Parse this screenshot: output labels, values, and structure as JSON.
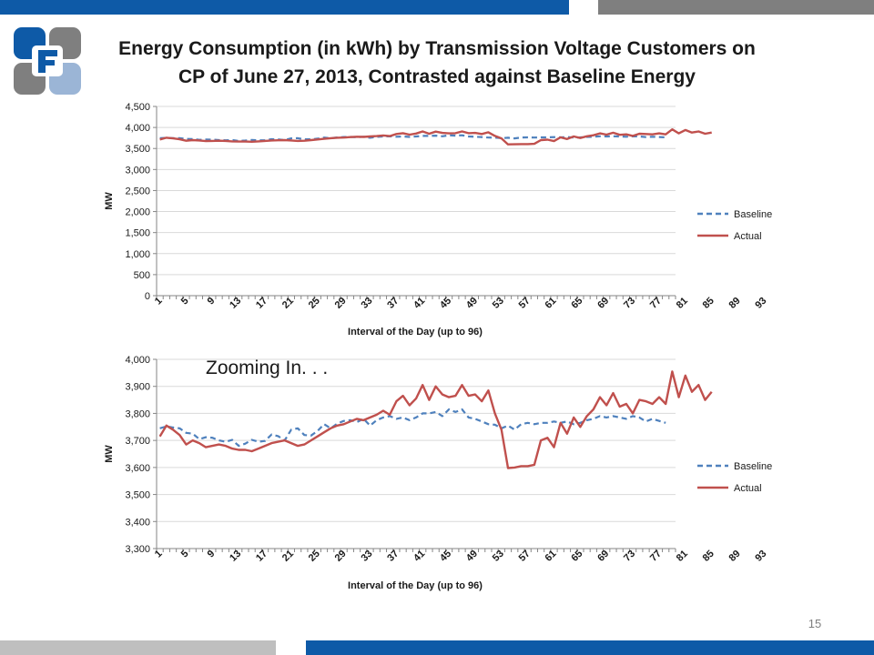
{
  "slide": {
    "title_line1": "Energy Consumption (in kWh) by Transmission Voltage Customers on",
    "title_line2": "CP of June 27, 2013, Contrasted against Baseline Energy",
    "zoom_label": "Zooming In. . .",
    "page_number": "15"
  },
  "colors": {
    "brand_blue": "#0e5aa7",
    "gray": "#7f7f7f",
    "baseline": "#4f81bd",
    "actual": "#c0504d"
  },
  "chart_data": [
    {
      "type": "line",
      "xlabel": "Interval of the Day (up to 96)",
      "ylabel": "MW",
      "ylim": [
        0,
        4500
      ],
      "yticks": [
        0,
        500,
        1000,
        1500,
        2000,
        2500,
        3000,
        3500,
        4000,
        4500
      ],
      "ytick_labels": [
        "0",
        "500",
        "1,000",
        "1,500",
        "2,000",
        "2,500",
        "3,000",
        "3,500",
        "4,000",
        "4,500"
      ],
      "xticks": [
        1,
        5,
        9,
        13,
        17,
        21,
        25,
        29,
        33,
        37,
        41,
        45,
        49,
        53,
        57,
        61,
        65,
        69,
        73,
        77,
        81,
        85,
        89,
        93
      ],
      "xtick_labels": [
        "1",
        "5",
        "9",
        "13",
        "17",
        "21",
        "25",
        "29",
        "33",
        "37",
        "41",
        "45",
        "49",
        "53",
        "57",
        "61",
        "65",
        "69",
        "73",
        "77",
        "81",
        "85",
        "89",
        "93"
      ],
      "grid": true,
      "legend": "right",
      "series": [
        {
          "name": "Baseline",
          "style": "dashed",
          "values": [
            3745,
            3752,
            3748,
            3745,
            3728,
            3725,
            3705,
            3712,
            3710,
            3700,
            3695,
            3702,
            3680,
            3688,
            3702,
            3695,
            3698,
            3722,
            3716,
            3700,
            3740,
            3745,
            3720,
            3718,
            3735,
            3760,
            3745,
            3762,
            3772,
            3775,
            3768,
            3780,
            3755,
            3775,
            3785,
            3790,
            3780,
            3785,
            3775,
            3785,
            3800,
            3800,
            3805,
            3790,
            3815,
            3805,
            3815,
            3785,
            3780,
            3770,
            3760,
            3758,
            3745,
            3755,
            3740,
            3760,
            3765,
            3760,
            3765,
            3765,
            3770,
            3765,
            3770,
            3760,
            3765,
            3775,
            3780,
            3790,
            3785,
            3790,
            3785,
            3780,
            3790,
            3785,
            3770,
            3780,
            3772,
            3765
          ]
        },
        {
          "name": "Actual",
          "style": "solid",
          "values": [
            3715,
            3755,
            3740,
            3720,
            3685,
            3700,
            3690,
            3675,
            3680,
            3685,
            3680,
            3670,
            3665,
            3665,
            3660,
            3670,
            3680,
            3690,
            3695,
            3700,
            3690,
            3680,
            3685,
            3700,
            3715,
            3730,
            3745,
            3755,
            3760,
            3770,
            3780,
            3775,
            3785,
            3795,
            3810,
            3795,
            3845,
            3865,
            3830,
            3855,
            3905,
            3850,
            3900,
            3870,
            3860,
            3865,
            3905,
            3865,
            3870,
            3845,
            3885,
            3800,
            3740,
            3598,
            3600,
            3605,
            3605,
            3610,
            3700,
            3710,
            3675,
            3765,
            3725,
            3785,
            3750,
            3790,
            3815,
            3860,
            3830,
            3875,
            3825,
            3835,
            3800,
            3850,
            3845,
            3835,
            3860,
            3835,
            3955,
            3860,
            3940,
            3880,
            3905,
            3850,
            3880
          ]
        }
      ]
    },
    {
      "type": "line",
      "xlabel": "Interval of the Day (up to 96)",
      "ylabel": "MW",
      "ylim": [
        3300,
        4000
      ],
      "yticks": [
        3300,
        3400,
        3500,
        3600,
        3700,
        3800,
        3900,
        4000
      ],
      "ytick_labels": [
        "3,300",
        "3,400",
        "3,500",
        "3,600",
        "3,700",
        "3,800",
        "3,900",
        "4,000"
      ],
      "xticks": [
        1,
        5,
        9,
        13,
        17,
        21,
        25,
        29,
        33,
        37,
        41,
        45,
        49,
        53,
        57,
        61,
        65,
        69,
        73,
        77,
        81,
        85,
        89,
        93
      ],
      "xtick_labels": [
        "1",
        "5",
        "9",
        "13",
        "17",
        "21",
        "25",
        "29",
        "33",
        "37",
        "41",
        "45",
        "49",
        "53",
        "57",
        "61",
        "65",
        "69",
        "73",
        "77",
        "81",
        "85",
        "89",
        "93"
      ],
      "grid": true,
      "legend": "right",
      "series": [
        {
          "name": "Baseline",
          "style": "dashed",
          "values": [
            3745,
            3752,
            3748,
            3745,
            3728,
            3725,
            3705,
            3712,
            3710,
            3700,
            3695,
            3702,
            3680,
            3688,
            3702,
            3695,
            3698,
            3722,
            3716,
            3700,
            3740,
            3745,
            3720,
            3718,
            3735,
            3760,
            3745,
            3762,
            3772,
            3775,
            3768,
            3780,
            3755,
            3775,
            3785,
            3790,
            3780,
            3785,
            3775,
            3785,
            3800,
            3800,
            3805,
            3790,
            3815,
            3805,
            3815,
            3785,
            3780,
            3770,
            3760,
            3758,
            3745,
            3755,
            3740,
            3760,
            3765,
            3760,
            3765,
            3765,
            3770,
            3765,
            3770,
            3760,
            3765,
            3775,
            3780,
            3790,
            3785,
            3790,
            3785,
            3780,
            3790,
            3785,
            3770,
            3780,
            3772,
            3765
          ]
        },
        {
          "name": "Actual",
          "style": "solid",
          "values": [
            3715,
            3755,
            3740,
            3720,
            3685,
            3700,
            3690,
            3675,
            3680,
            3685,
            3680,
            3670,
            3665,
            3665,
            3660,
            3670,
            3680,
            3690,
            3695,
            3700,
            3690,
            3680,
            3685,
            3700,
            3715,
            3730,
            3745,
            3755,
            3760,
            3770,
            3780,
            3775,
            3785,
            3795,
            3810,
            3795,
            3845,
            3865,
            3830,
            3855,
            3905,
            3850,
            3900,
            3870,
            3860,
            3865,
            3905,
            3865,
            3870,
            3845,
            3885,
            3800,
            3740,
            3598,
            3600,
            3605,
            3605,
            3610,
            3700,
            3710,
            3675,
            3765,
            3725,
            3785,
            3750,
            3790,
            3815,
            3860,
            3830,
            3875,
            3825,
            3835,
            3800,
            3850,
            3845,
            3835,
            3860,
            3835,
            3955,
            3860,
            3940,
            3880,
            3905,
            3850,
            3880
          ]
        }
      ]
    }
  ]
}
